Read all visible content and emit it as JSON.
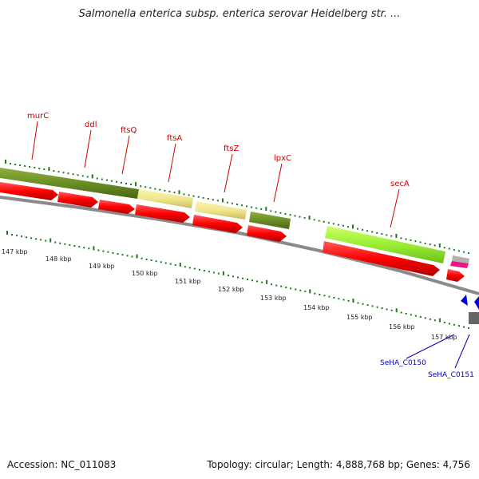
{
  "title": "Salmonella enterica subsp. enterica serovar Heidelberg str. ...",
  "footer": {
    "accession": "Accession: NC_011083",
    "info": "Topology: circular; Length: 4,888,768 bp; Genes: 4,756"
  },
  "genes": [
    {
      "name": "murC",
      "color": "#cc0000"
    },
    {
      "name": "ddl",
      "color": "#cc0000"
    },
    {
      "name": "ftsQ",
      "color": "#cc0000"
    },
    {
      "name": "ftsA",
      "color": "#cc0000"
    },
    {
      "name": "ftsZ",
      "color": "#cc0000"
    },
    {
      "name": "lpxC",
      "color": "#cc0000"
    },
    {
      "name": "secA",
      "color": "#cc0000"
    }
  ],
  "blue_labels": [
    "SeHA_C0150",
    "SeHA_C0151"
  ],
  "ticks": [
    "147 kbp",
    "148 kbp",
    "149 kbp",
    "150 kbp",
    "151 kbp",
    "152 kbp",
    "153 kbp",
    "154 kbp",
    "155 kbp",
    "156 kbp",
    "157 kbp"
  ],
  "colors": {
    "cds": "#ff0000",
    "olive": "#6b8e23",
    "khaki": "#f0e68c",
    "lime": "#99ee33",
    "gray": "#888888",
    "blue": "#0000dd",
    "tick_green": "#1a7a1a"
  }
}
